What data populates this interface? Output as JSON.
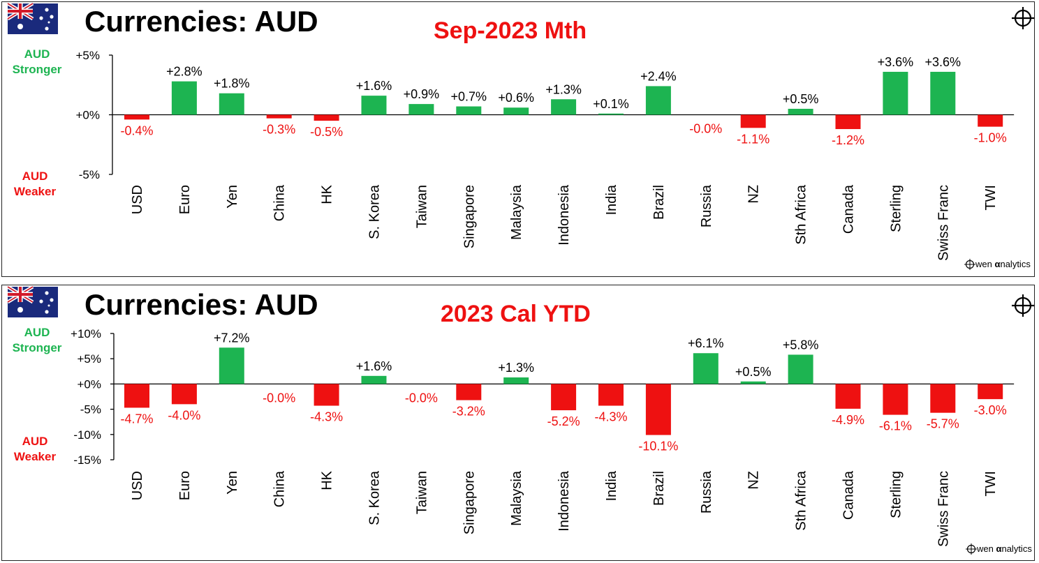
{
  "colors": {
    "positive": "#1db451",
    "negative": "#ee1111",
    "text": "#000000",
    "stronger": "#1db451",
    "weaker": "#ee1111"
  },
  "brand": {
    "logo_text": "wen analytics",
    "logo_alpha": "α"
  },
  "chart_data": [
    {
      "type": "bar",
      "title": "Currencies: AUD",
      "subtitle": "Sep-2023 Mth",
      "ylabel_top": [
        "AUD",
        "Stronger"
      ],
      "ylabel_bottom": [
        "AUD",
        "Weaker"
      ],
      "ylim": [
        -5,
        5
      ],
      "yticks": [
        5,
        0,
        -5
      ],
      "ytick_labels": [
        "+5%",
        "+0%",
        "-5%"
      ],
      "categories": [
        "USD",
        "Euro",
        "Yen",
        "China",
        "HK",
        "S. Korea",
        "Taiwan",
        "Singapore",
        "Malaysia",
        "Indonesia",
        "India",
        "Brazil",
        "Russia",
        "NZ",
        "Sth Africa",
        "Canada",
        "Sterling",
        "Swiss Franc",
        "TWI"
      ],
      "values": [
        -0.4,
        2.8,
        1.8,
        -0.3,
        -0.5,
        1.6,
        0.9,
        0.7,
        0.6,
        1.3,
        0.1,
        2.4,
        -0.0,
        -1.1,
        0.5,
        -1.2,
        3.6,
        3.6,
        -1.0
      ],
      "data_labels": [
        "-0.4%",
        "+2.8%",
        "+1.8%",
        "-0.3%",
        "-0.5%",
        "+1.6%",
        "+0.9%",
        "+0.7%",
        "+0.6%",
        "+1.3%",
        "+0.1%",
        "+2.4%",
        "-0.0%",
        "-1.1%",
        "+0.5%",
        "-1.2%",
        "+3.6%",
        "+3.6%",
        "-1.0%"
      ]
    },
    {
      "type": "bar",
      "title": "Currencies: AUD",
      "subtitle": "2023 Cal YTD",
      "ylabel_top": [
        "AUD",
        "Stronger"
      ],
      "ylabel_bottom": [
        "AUD",
        "Weaker"
      ],
      "ylim": [
        -15,
        10
      ],
      "yticks": [
        10,
        5,
        0,
        -5,
        -10,
        -15
      ],
      "ytick_labels": [
        "+10%",
        "+5%",
        "+0%",
        "-5%",
        "-10%",
        "-15%"
      ],
      "categories": [
        "USD",
        "Euro",
        "Yen",
        "China",
        "HK",
        "S. Korea",
        "Taiwan",
        "Singapore",
        "Malaysia",
        "Indonesia",
        "India",
        "Brazil",
        "Russia",
        "NZ",
        "Sth Africa",
        "Canada",
        "Sterling",
        "Swiss Franc",
        "TWI"
      ],
      "values": [
        -4.7,
        -4.0,
        7.2,
        -0.0,
        -4.3,
        1.6,
        -0.0,
        -3.2,
        1.3,
        -5.2,
        -4.3,
        -10.1,
        6.1,
        0.5,
        5.8,
        -4.9,
        -6.1,
        -5.7,
        -3.0
      ],
      "data_labels": [
        "-4.7%",
        "-4.0%",
        "+7.2%",
        "-0.0%",
        "-4.3%",
        "+1.6%",
        "-0.0%",
        "-3.2%",
        "+1.3%",
        "-5.2%",
        "-4.3%",
        "-10.1%",
        "+6.1%",
        "+0.5%",
        "+5.8%",
        "-4.9%",
        "-6.1%",
        "-5.7%",
        "-3.0%"
      ]
    }
  ]
}
